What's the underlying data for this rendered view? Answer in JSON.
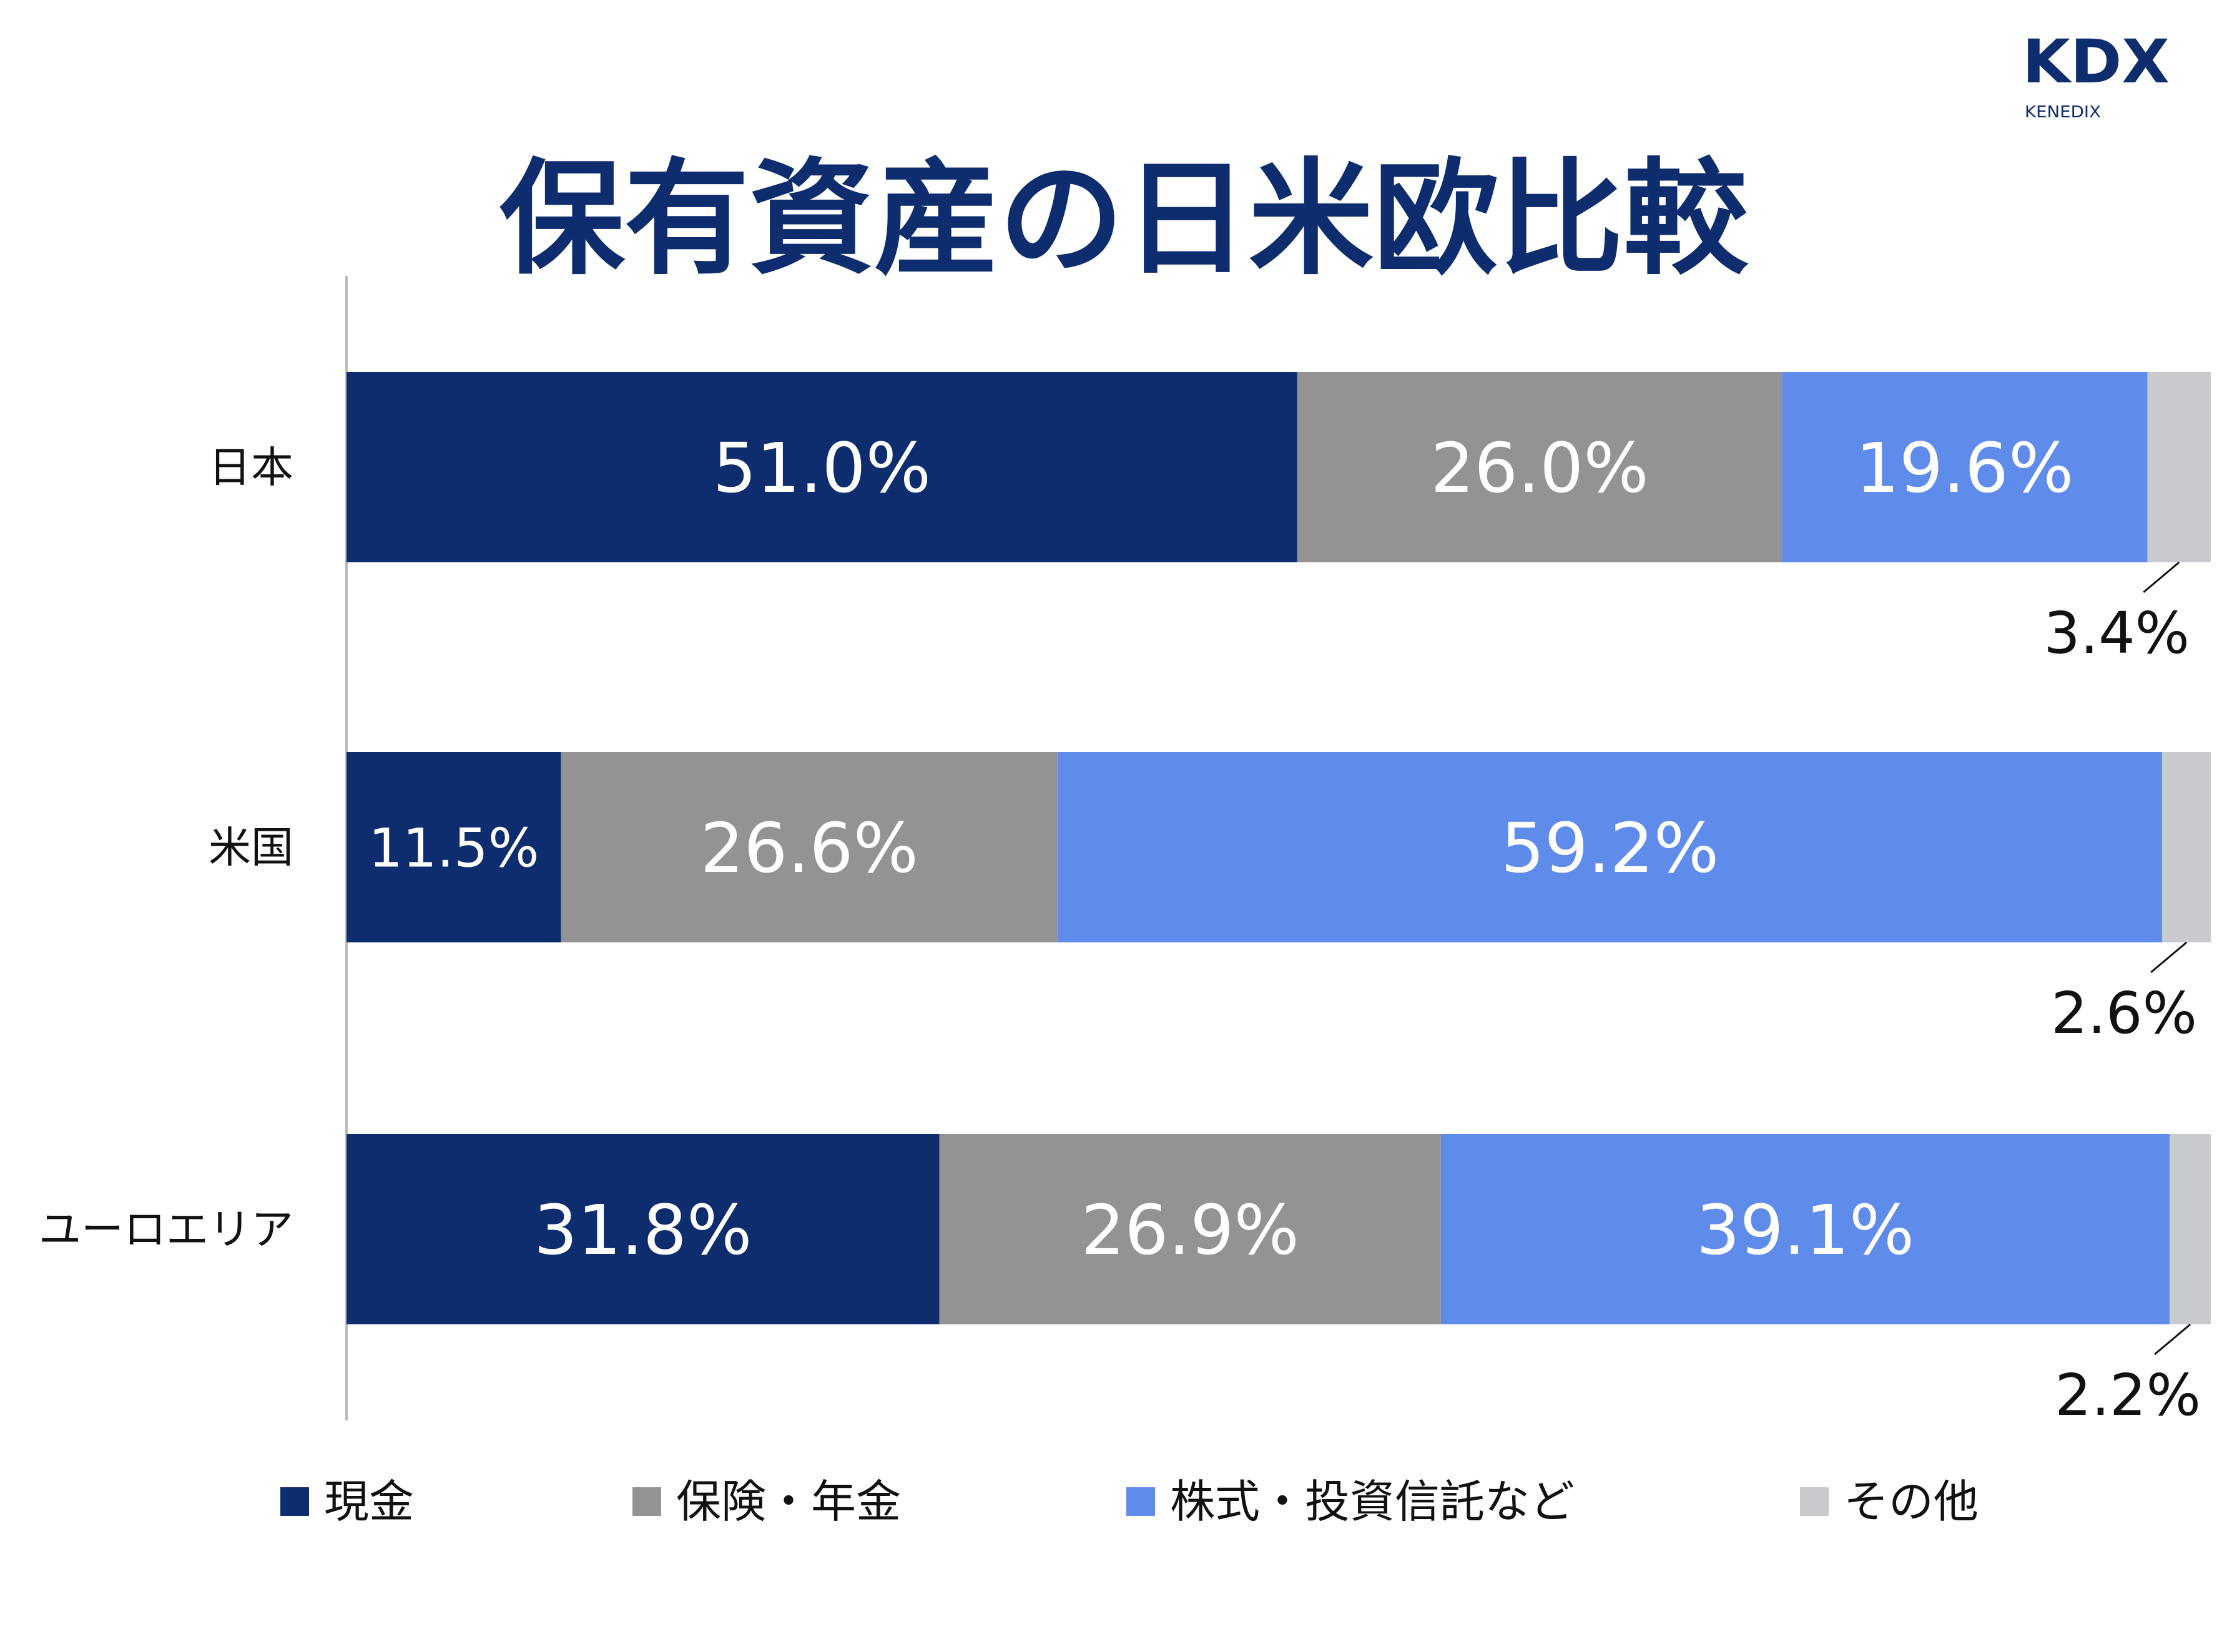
{
  "logo": {
    "main": "KDX",
    "sub": "KENEDIX"
  },
  "chart_data": {
    "type": "bar",
    "orientation": "horizontal",
    "stacked": true,
    "title": "保有資産の日米欧比較",
    "categories": [
      "日本",
      "米国",
      "ユーロエリア"
    ],
    "series": [
      {
        "name": "現金",
        "color": "#0e2d6e",
        "values": [
          51.0,
          11.5,
          31.8
        ],
        "labels": [
          "51.0%",
          "11.5%",
          "31.8%"
        ]
      },
      {
        "name": "保険・年金",
        "color": "#939393",
        "values": [
          26.0,
          26.6,
          26.9
        ],
        "labels": [
          "26.0%",
          "26.6%",
          "26.9%"
        ]
      },
      {
        "name": "株式・投資信託など",
        "color": "#5f8ceb",
        "values": [
          19.6,
          59.2,
          39.1
        ],
        "labels": [
          "19.6%",
          "59.2%",
          "39.1%"
        ]
      },
      {
        "name": "その他",
        "color": "#c9cacd",
        "values": [
          3.4,
          2.6,
          2.2
        ],
        "labels": [
          "3.4%",
          "2.6%",
          "2.2%"
        ]
      }
    ],
    "xlim": [
      0,
      100
    ],
    "grid": false,
    "legend": "bottom"
  }
}
